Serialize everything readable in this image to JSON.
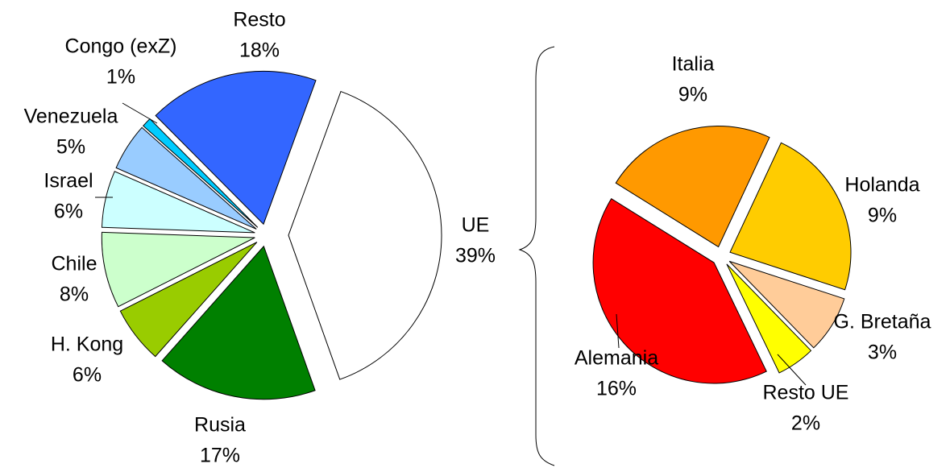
{
  "chart_data": [
    {
      "type": "pie",
      "categories": [
        "UE",
        "Rusia",
        "H. Kong",
        "Chile",
        "Israel",
        "Venezuela",
        "Congo (exZ)",
        "Resto"
      ],
      "values": [
        39,
        17,
        6,
        8,
        6,
        5,
        1,
        18
      ],
      "value_labels": [
        "39%",
        "17%",
        "6%",
        "8%",
        "6%",
        "5%",
        "1%",
        "18%"
      ],
      "colors": [
        "#ffffff",
        "#008000",
        "#99cc00",
        "#ccffcc",
        "#ccffff",
        "#99ccff",
        "#00ccff",
        "#3366ff"
      ]
    },
    {
      "type": "pie",
      "categories": [
        "Holanda",
        "G. Bretaña",
        "Resto UE",
        "Alemania",
        "Italia"
      ],
      "values": [
        9,
        3,
        2,
        16,
        9
      ],
      "value_labels": [
        "9%",
        "3%",
        "2%",
        "16%",
        "9%"
      ],
      "colors": [
        "#ffcc00",
        "#ffcc99",
        "#ffff00",
        "#ff0000",
        "#ff9900"
      ]
    }
  ]
}
